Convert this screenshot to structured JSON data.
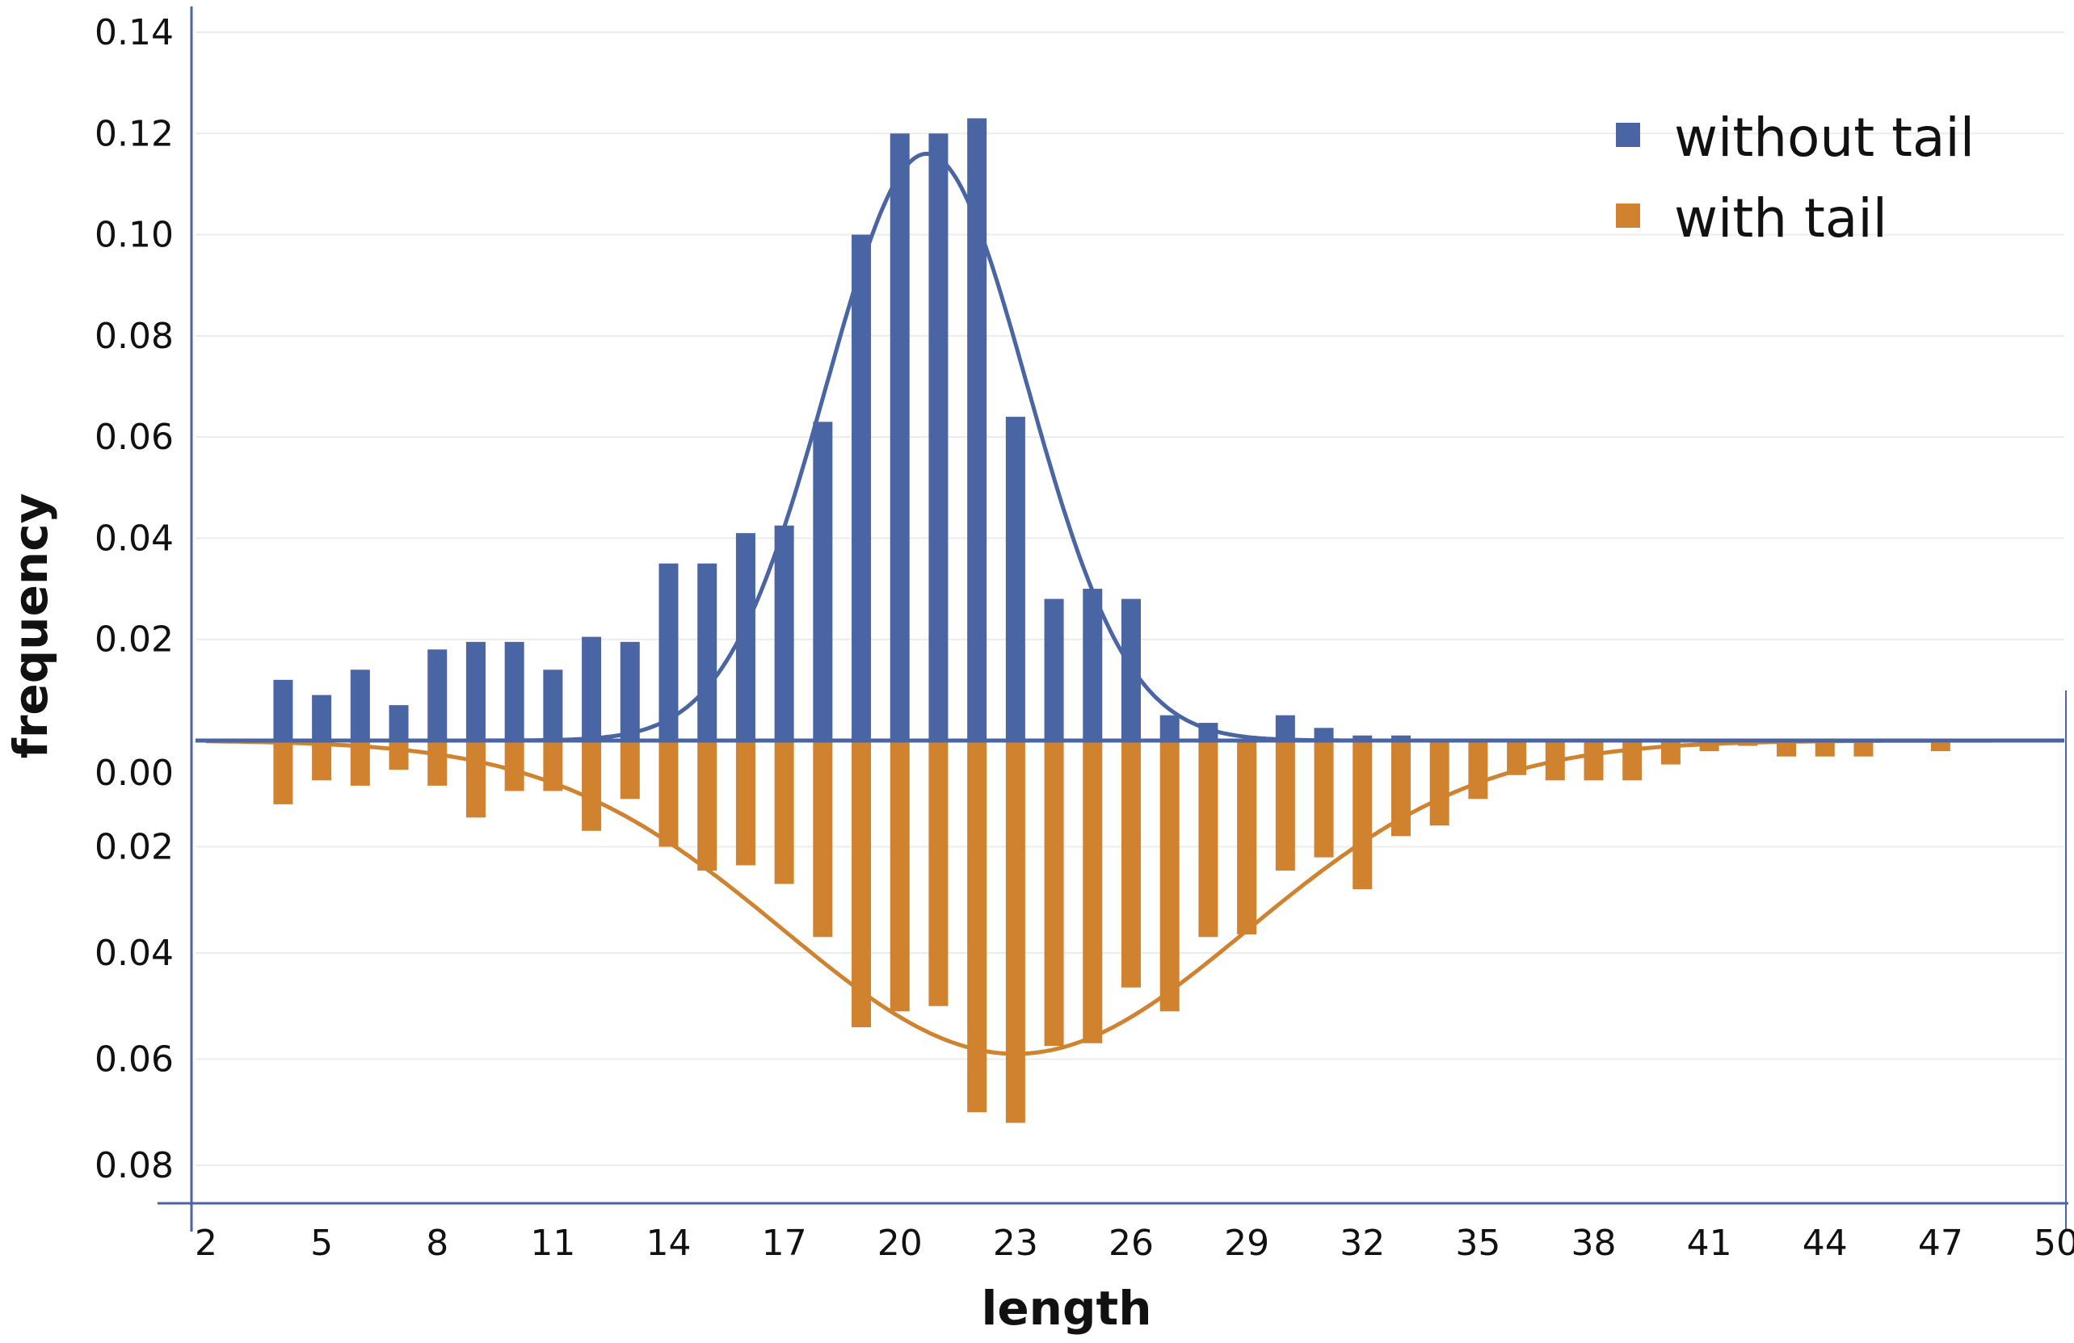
{
  "chart_data": {
    "type": "bar",
    "title": "",
    "xlabel": "length",
    "ylabel": "frequency",
    "x": [
      2,
      3,
      4,
      5,
      6,
      7,
      8,
      9,
      10,
      11,
      12,
      13,
      14,
      15,
      16,
      17,
      18,
      19,
      20,
      21,
      22,
      23,
      24,
      25,
      26,
      27,
      28,
      29,
      30,
      31,
      32,
      33,
      34,
      35,
      36,
      37,
      38,
      39,
      40,
      41,
      42,
      43,
      44,
      45,
      46,
      47,
      48,
      49,
      50
    ],
    "x_tick_labels": [
      "2",
      "5",
      "8",
      "11",
      "14",
      "17",
      "20",
      "23",
      "26",
      "29",
      "32",
      "35",
      "38",
      "41",
      "44",
      "47",
      "50"
    ],
    "y_upper_tick_labels": [
      "0.14",
      "0.12",
      "0.10",
      "0.08",
      "0.06",
      "0.04",
      "0.02"
    ],
    "y_lower_tick_labels": [
      "0.00",
      "0.02",
      "0.04",
      "0.06",
      "0.08"
    ],
    "ylim_upper": [
      0,
      0.14
    ],
    "ylim_lower": [
      0,
      0.08
    ],
    "grid": true,
    "legend_position": "top-right",
    "series": [
      {
        "name": "without tail",
        "direction": "up",
        "color": "#4A65A3",
        "values": [
          0,
          0,
          0.012,
          0.009,
          0.014,
          0.007,
          0.018,
          0.0195,
          0.0195,
          0.014,
          0.0205,
          0.0195,
          0.035,
          0.035,
          0.041,
          0.0425,
          0.063,
          0.1,
          0.12,
          0.12,
          0.123,
          0.064,
          0.028,
          0.03,
          0.028,
          0.005,
          0.0035,
          0,
          0.005,
          0.0025,
          0.001,
          0.001,
          0,
          0,
          0,
          0,
          0,
          0,
          0,
          0,
          0,
          0,
          0,
          0,
          0,
          0,
          0,
          0,
          0
        ],
        "fit_curve": "gaussian",
        "fit_mean": 20.7,
        "fit_sd": 2.6,
        "fit_peak": 0.116
      },
      {
        "name": "with tail",
        "direction": "down",
        "color": "#D0822F",
        "values": [
          0,
          0,
          0.012,
          0.0075,
          0.0085,
          0.0055,
          0.0085,
          0.0145,
          0.0095,
          0.0095,
          0.017,
          0.011,
          0.02,
          0.0245,
          0.0235,
          0.027,
          0.037,
          0.054,
          0.051,
          0.05,
          0.07,
          0.072,
          0.0575,
          0.057,
          0.0465,
          0.051,
          0.037,
          0.0365,
          0.0245,
          0.022,
          0.028,
          0.018,
          0.016,
          0.011,
          0.0065,
          0.0075,
          0.0075,
          0.0075,
          0.0045,
          0.002,
          0.001,
          0.003,
          0.003,
          0.003,
          0,
          0.002,
          0,
          0,
          0
        ],
        "fit_curve": "gaussian",
        "fit_mean": 23.0,
        "fit_sd": 6.0,
        "fit_peak": 0.059
      }
    ]
  }
}
